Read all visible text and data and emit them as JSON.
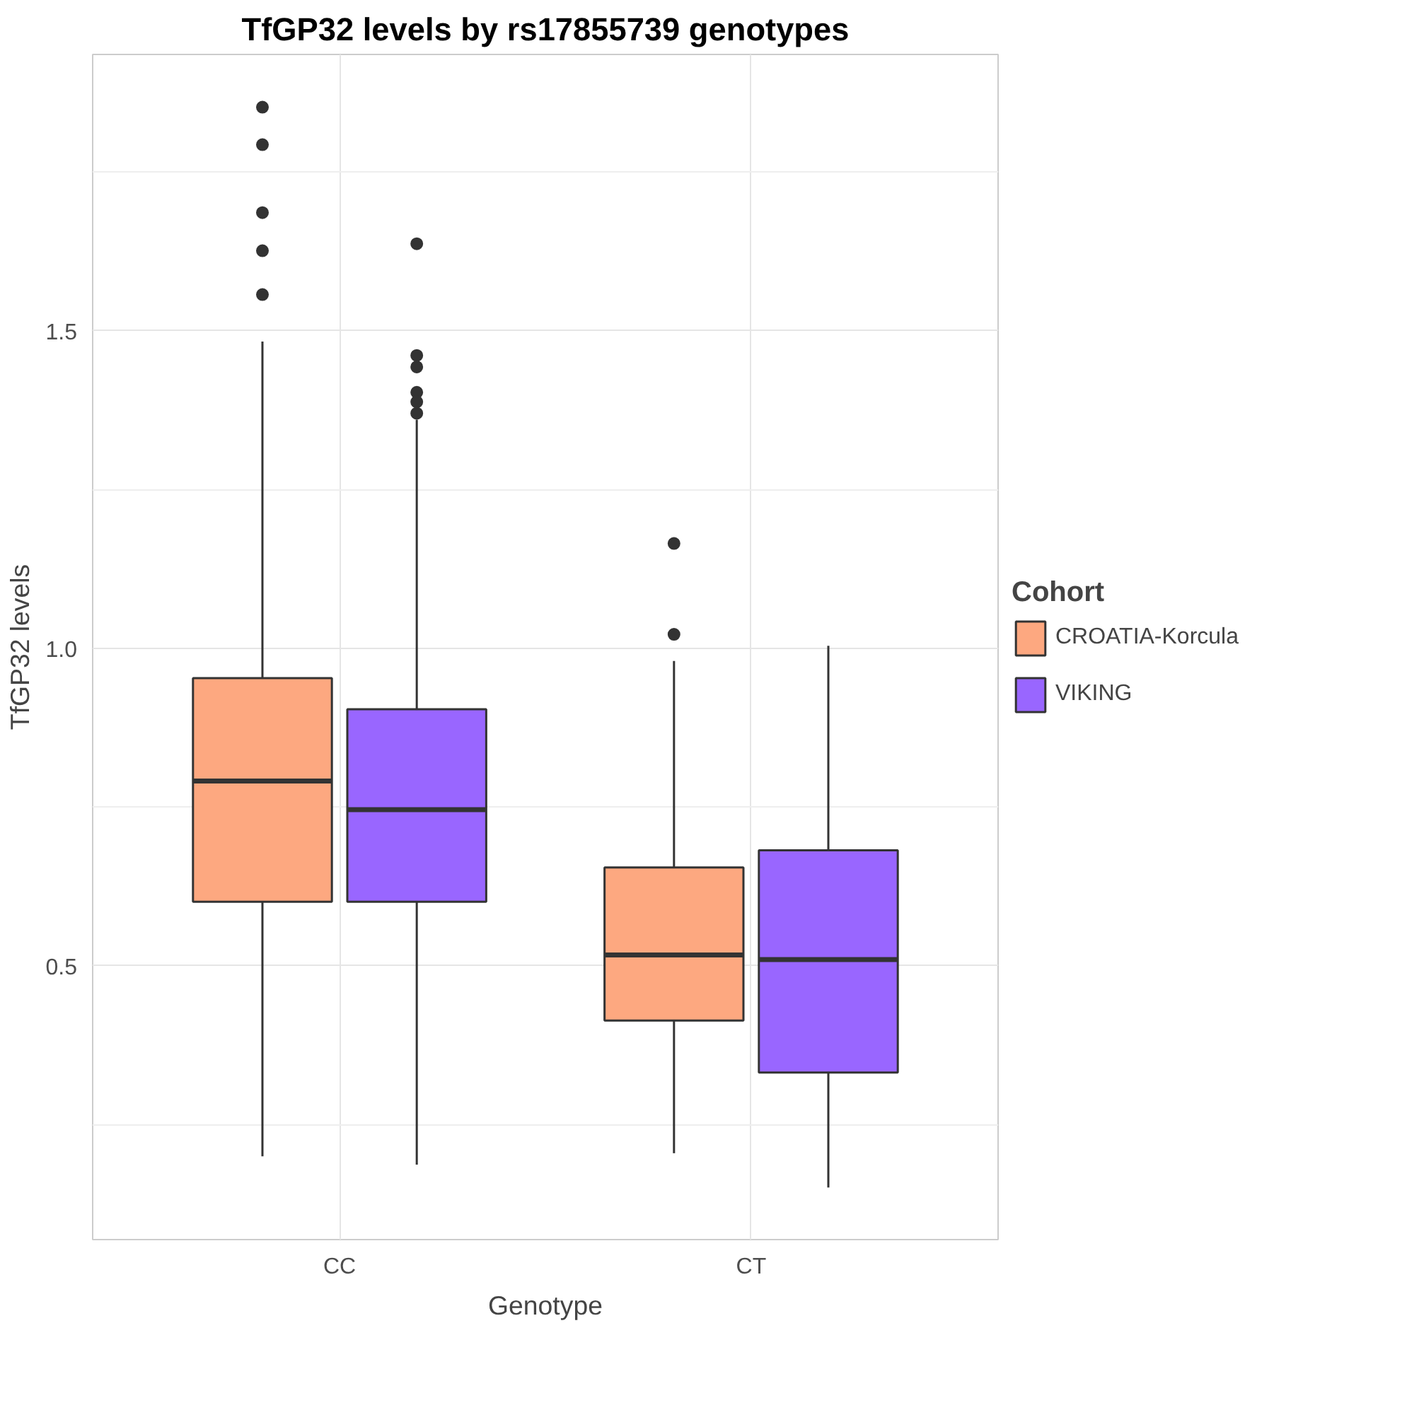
{
  "chart_data": {
    "type": "box",
    "title": "TfGP32 levels by rs17855739 genotypes",
    "xlabel": "Genotype",
    "ylabel": "TfGP32 levels",
    "legend_title": "Cohort",
    "categories": [
      "CC",
      "CT"
    ],
    "series": [
      {
        "name": "CROATIA-Korcula",
        "color": "#fda880",
        "boxes": [
          {
            "low": 0.2,
            "q1": 0.601,
            "median": 0.791,
            "q3": 0.953,
            "high": 1.483,
            "outliers": [
              1.852,
              1.793,
              1.686,
              1.626,
              1.557
            ]
          },
          {
            "low": 0.205,
            "q1": 0.414,
            "median": 0.517,
            "q3": 0.655,
            "high": 0.98,
            "outliers": [
              1.165,
              1.022
            ]
          }
        ]
      },
      {
        "name": "VIKING",
        "color": "#9966ff",
        "boxes": [
          {
            "low": 0.187,
            "q1": 0.601,
            "median": 0.746,
            "q3": 0.904,
            "high": 1.36,
            "outliers": [
              1.637,
              1.461,
              1.443,
              1.403,
              1.388,
              1.37
            ]
          },
          {
            "low": 0.151,
            "q1": 0.332,
            "median": 0.51,
            "q3": 0.682,
            "high": 1.004
          }
        ]
      }
    ],
    "ylim": [
      0.069,
      1.935
    ],
    "yticks": [
      0.5,
      {
        "value": 1.0,
        "label": "1.0"
      },
      1.5
    ],
    "grid": true,
    "legend": "right"
  }
}
